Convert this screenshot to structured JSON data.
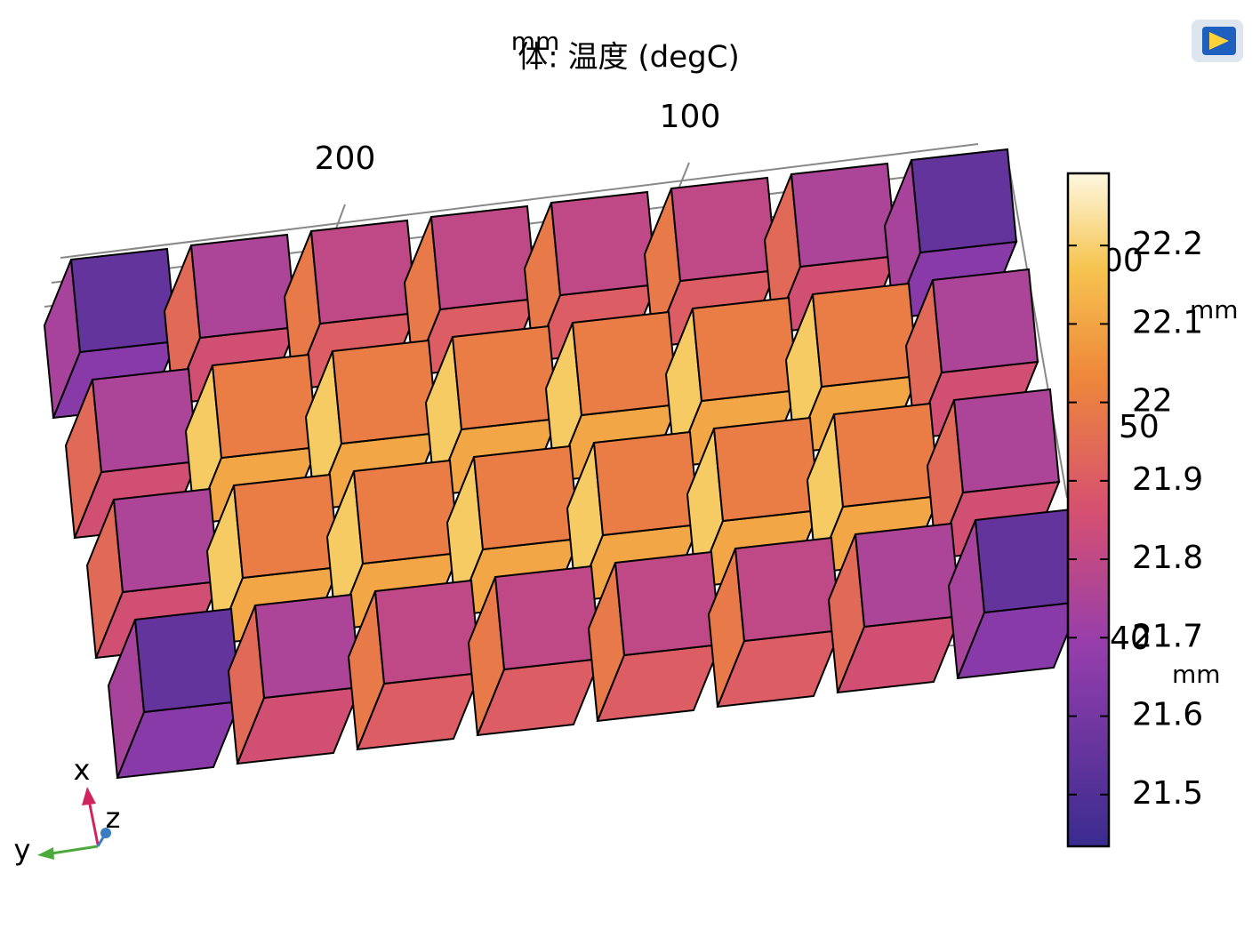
{
  "title": "体: 温度 (degC)",
  "axis_units": {
    "top": "mm",
    "right_upper": "mm",
    "right_lower": "mm"
  },
  "axis_ticks": {
    "top": [
      "200",
      "100"
    ],
    "right": [
      "00",
      "50",
      "40"
    ]
  },
  "triad": {
    "x": "x",
    "y": "y",
    "z": "z"
  },
  "colorbar": {
    "lim": [
      21.434,
      22.292
    ],
    "ticks": [
      21.5,
      21.6,
      21.7,
      21.8,
      21.9,
      22,
      22.1,
      22.2
    ]
  },
  "cubes": [
    [
      21.55,
      21.75,
      21.8,
      21.8,
      21.8,
      21.8,
      21.75,
      21.55
    ],
    [
      21.75,
      22.0,
      22.0,
      22.0,
      22.0,
      22.0,
      22.0,
      21.75
    ],
    [
      21.75,
      22.0,
      22.0,
      22.0,
      22.0,
      22.0,
      22.0,
      21.75
    ],
    [
      21.55,
      21.75,
      21.8,
      21.8,
      21.8,
      21.8,
      21.75,
      21.55
    ]
  ]
}
